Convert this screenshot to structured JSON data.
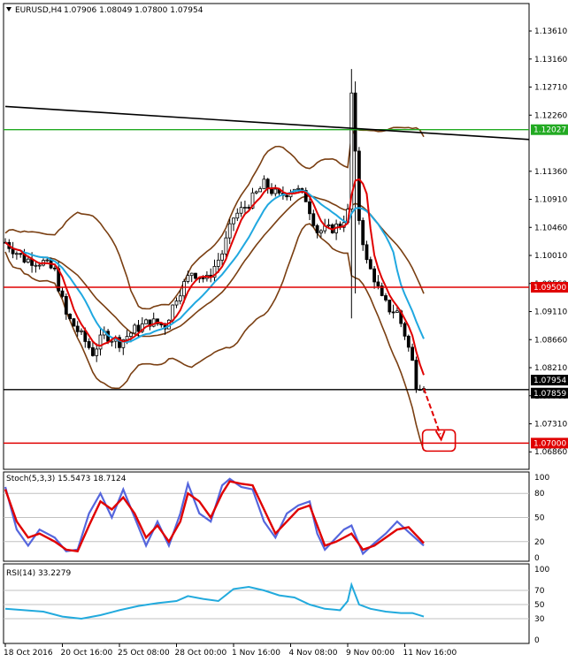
{
  "header": {
    "symbol": "EURUSD,H4",
    "ohlc": "1.07906 1.08049 1.07800 1.07954"
  },
  "colors": {
    "candle": "#000000",
    "bands": "#7a3f12",
    "ma_fast": "#e00000",
    "ma_slow": "#20a8e0",
    "trendline": "#000000",
    "level_green": "#22aa22",
    "level_red": "#e00000",
    "stoch_main": "#5566dd",
    "stoch_signal": "#e00000",
    "rsi": "#22aadd",
    "grid": "#c0c0c0"
  },
  "chart_data": {
    "type": "candlestick",
    "price_axis": {
      "range": [
        1.0658,
        1.1405
      ],
      "ticks": [
        "1.13610",
        "1.13160",
        "1.12710",
        "1.12260",
        "1.11360",
        "1.10910",
        "1.10460",
        "1.10010",
        "1.09560",
        "1.09110",
        "1.08660",
        "1.08210",
        "1.07760",
        "1.07310",
        "1.06860"
      ],
      "badges": [
        {
          "label": "1.12027",
          "value": 1.12027,
          "color": "#22aa22"
        },
        {
          "label": "1.09500",
          "value": 1.095,
          "color": "#e00000"
        },
        {
          "label": "1.07954",
          "value": 1.07954,
          "color": "#000000"
        },
        {
          "label": "1.07859",
          "value": 1.07859,
          "color": "#000000"
        },
        {
          "label": "1.07000",
          "value": 1.07,
          "color": "#e00000"
        }
      ]
    },
    "time_axis": {
      "labels": [
        "18 Oct 2016",
        "20 Oct 16:00",
        "25 Oct 08:00",
        "28 Oct 00:00",
        "1 Nov 16:00",
        "4 Nov 08:00",
        "9 Nov 00:00",
        "11 Nov 16:00"
      ],
      "bar_index": [
        0,
        15,
        30,
        45,
        60,
        75,
        90,
        105
      ]
    },
    "horizontal_levels": [
      {
        "value": 1.12027,
        "color": "#22aa22"
      },
      {
        "value": 1.095,
        "color": "#e00000"
      },
      {
        "value": 1.07859,
        "color": "#000000"
      },
      {
        "value": 1.07,
        "color": "#e00000"
      }
    ],
    "trendline": {
      "start": {
        "bar": 0,
        "price": 1.124
      },
      "end": {
        "bar": 138,
        "price": 1.1187
      }
    },
    "projection_target": {
      "bar": 112,
      "price": 1.07
    },
    "candles_close_anchor": [
      [
        0,
        1.1022
      ],
      [
        5,
        1.0995
      ],
      [
        10,
        1.099
      ],
      [
        13,
        1.0975
      ],
      [
        16,
        1.0905
      ],
      [
        20,
        1.0872
      ],
      [
        23,
        1.0845
      ],
      [
        26,
        1.0875
      ],
      [
        30,
        1.0862
      ],
      [
        34,
        1.0882
      ],
      [
        38,
        1.0895
      ],
      [
        42,
        1.0888
      ],
      [
        45,
        1.0935
      ],
      [
        49,
        1.0975
      ],
      [
        53,
        1.0962
      ],
      [
        57,
        1.1005
      ],
      [
        60,
        1.1062
      ],
      [
        64,
        1.1085
      ],
      [
        68,
        1.1115
      ],
      [
        72,
        1.1095
      ],
      [
        76,
        1.111
      ],
      [
        79,
        1.1092
      ],
      [
        82,
        1.104
      ],
      [
        85,
        1.1042
      ],
      [
        88,
        1.105
      ],
      [
        90,
        1.107
      ],
      [
        91,
        1.126
      ],
      [
        93,
        1.106
      ],
      [
        95,
        1.099
      ],
      [
        97,
        1.0965
      ],
      [
        99,
        1.093
      ],
      [
        101,
        1.0915
      ],
      [
        103,
        1.091
      ],
      [
        105,
        1.0875
      ],
      [
        107,
        1.083
      ],
      [
        108,
        1.0795
      ],
      [
        110,
        1.0795
      ]
    ],
    "stochastic": {
      "label": "Stoch(5,3,3) 15.5473 18.7124",
      "range": [
        0,
        100
      ],
      "levels": [
        80,
        50,
        20
      ],
      "ticks": [
        "100",
        "80",
        "50",
        "20",
        "0"
      ],
      "signal": [
        [
          0,
          85
        ],
        [
          3,
          45
        ],
        [
          6,
          25
        ],
        [
          9,
          30
        ],
        [
          13,
          20
        ],
        [
          16,
          10
        ],
        [
          19,
          8
        ],
        [
          22,
          40
        ],
        [
          25,
          70
        ],
        [
          28,
          60
        ],
        [
          31,
          75
        ],
        [
          34,
          55
        ],
        [
          37,
          25
        ],
        [
          40,
          40
        ],
        [
          43,
          20
        ],
        [
          46,
          45
        ],
        [
          48,
          80
        ],
        [
          51,
          70
        ],
        [
          54,
          50
        ],
        [
          57,
          80
        ],
        [
          59,
          95
        ],
        [
          62,
          92
        ],
        [
          65,
          90
        ],
        [
          68,
          60
        ],
        [
          71,
          30
        ],
        [
          74,
          45
        ],
        [
          77,
          60
        ],
        [
          80,
          65
        ],
        [
          82,
          40
        ],
        [
          84,
          15
        ],
        [
          87,
          20
        ],
        [
          89,
          25
        ],
        [
          91,
          30
        ],
        [
          94,
          10
        ],
        [
          97,
          15
        ],
        [
          100,
          25
        ],
        [
          103,
          35
        ],
        [
          106,
          38
        ],
        [
          110,
          18
        ]
      ],
      "main": [
        [
          0,
          88
        ],
        [
          3,
          35
        ],
        [
          6,
          15
        ],
        [
          9,
          35
        ],
        [
          13,
          25
        ],
        [
          16,
          8
        ],
        [
          19,
          10
        ],
        [
          22,
          55
        ],
        [
          25,
          80
        ],
        [
          28,
          50
        ],
        [
          31,
          85
        ],
        [
          34,
          50
        ],
        [
          37,
          15
        ],
        [
          40,
          45
        ],
        [
          43,
          15
        ],
        [
          46,
          55
        ],
        [
          48,
          92
        ],
        [
          51,
          55
        ],
        [
          54,
          45
        ],
        [
          57,
          90
        ],
        [
          59,
          98
        ],
        [
          62,
          88
        ],
        [
          65,
          85
        ],
        [
          68,
          45
        ],
        [
          71,
          25
        ],
        [
          74,
          55
        ],
        [
          77,
          65
        ],
        [
          80,
          70
        ],
        [
          82,
          30
        ],
        [
          84,
          10
        ],
        [
          87,
          25
        ],
        [
          89,
          35
        ],
        [
          91,
          40
        ],
        [
          94,
          5
        ],
        [
          97,
          18
        ],
        [
          100,
          30
        ],
        [
          103,
          45
        ],
        [
          106,
          32
        ],
        [
          110,
          15
        ]
      ]
    },
    "rsi": {
      "label": "RSI(14) 33.2279",
      "range": [
        0,
        100
      ],
      "levels": [
        70,
        50,
        30
      ],
      "ticks": [
        "100",
        "70",
        "50",
        "30",
        "0"
      ],
      "values": [
        [
          0,
          44
        ],
        [
          5,
          42
        ],
        [
          10,
          40
        ],
        [
          15,
          33
        ],
        [
          20,
          30
        ],
        [
          25,
          35
        ],
        [
          30,
          42
        ],
        [
          35,
          48
        ],
        [
          40,
          52
        ],
        [
          45,
          55
        ],
        [
          48,
          62
        ],
        [
          52,
          58
        ],
        [
          56,
          55
        ],
        [
          60,
          72
        ],
        [
          64,
          75
        ],
        [
          68,
          70
        ],
        [
          72,
          63
        ],
        [
          76,
          60
        ],
        [
          80,
          50
        ],
        [
          84,
          44
        ],
        [
          88,
          42
        ],
        [
          90,
          55
        ],
        [
          91,
          78
        ],
        [
          93,
          50
        ],
        [
          96,
          44
        ],
        [
          100,
          40
        ],
        [
          104,
          38
        ],
        [
          107,
          38
        ],
        [
          110,
          33
        ]
      ]
    }
  }
}
